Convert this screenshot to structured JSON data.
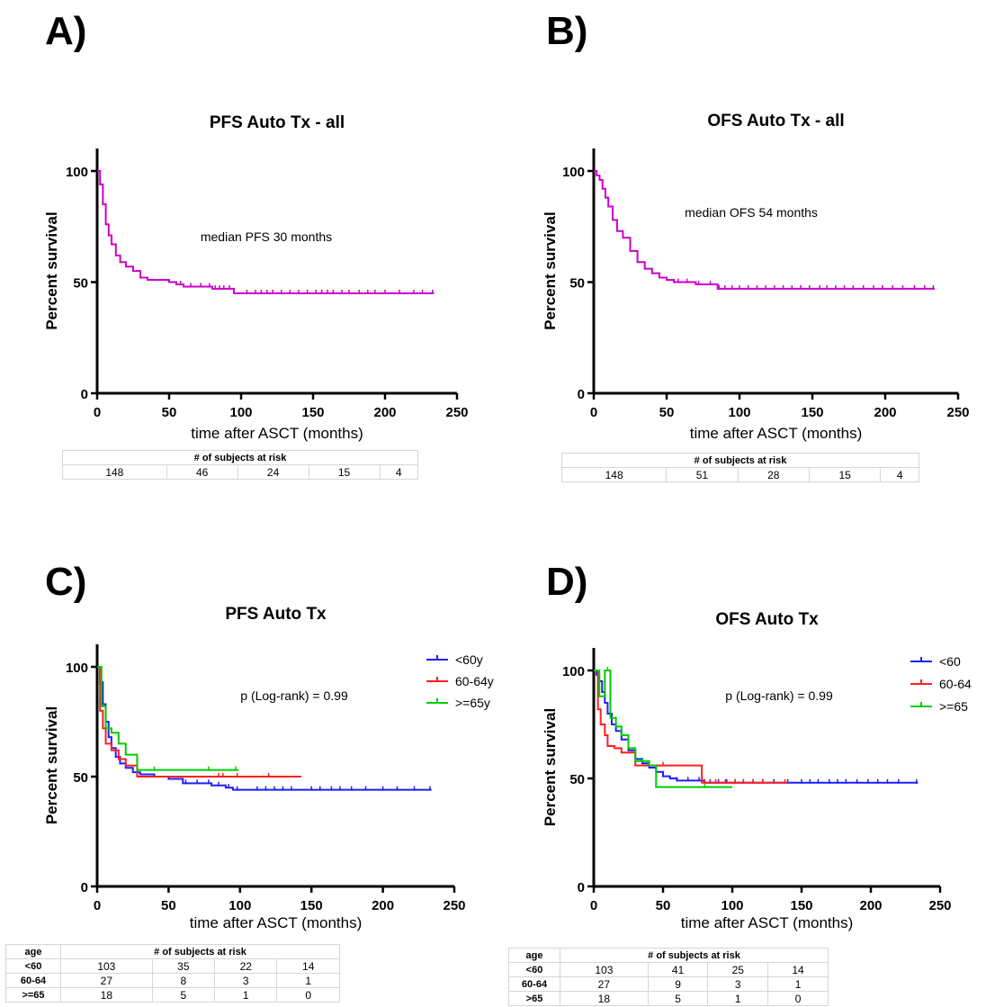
{
  "panels": {
    "a": "A)",
    "b": "B)",
    "c": "C)",
    "d": "D)"
  },
  "chart_data": [
    {
      "type": "line",
      "title": "PFS Auto Tx - all",
      "xlabel": "time after ASCT (months)",
      "ylabel": "Percent survival",
      "xlim": [
        0,
        250
      ],
      "ylim": [
        0,
        100
      ],
      "xticks": [
        0,
        50,
        100,
        150,
        200,
        250
      ],
      "yticks": [
        0,
        50,
        100
      ],
      "annotation": "median PFS 30 months",
      "series": [
        {
          "color": "#cc00cc",
          "x": [
            0,
            2,
            4,
            6,
            8,
            10,
            13,
            16,
            20,
            25,
            30,
            35,
            40,
            45,
            50,
            55,
            60,
            70,
            80,
            90,
            95,
            100,
            110,
            130,
            150,
            170,
            190,
            210,
            234
          ],
          "y": [
            100,
            94,
            85,
            76,
            71,
            67,
            62,
            59,
            57,
            55,
            52,
            51,
            51,
            51,
            50,
            49,
            48,
            48,
            47,
            47,
            45,
            45,
            45,
            45,
            45,
            45,
            45,
            45,
            45
          ],
          "censors": [
            58,
            65,
            72,
            78,
            82,
            85,
            88,
            92,
            104,
            110,
            114,
            118,
            122,
            128,
            134,
            140,
            146,
            152,
            156,
            160,
            164,
            170,
            175,
            182,
            188,
            193,
            200,
            210,
            220,
            226,
            233
          ]
        }
      ],
      "risk_table": {
        "header": "# of subjects at risk",
        "values": [
          "148",
          "46",
          "24",
          "15",
          "4"
        ]
      }
    },
    {
      "type": "line",
      "title": "OFS Auto Tx - all",
      "xlabel": "time after ASCT (months)",
      "ylabel": "Percent survival",
      "xlim": [
        0,
        250
      ],
      "ylim": [
        0,
        100
      ],
      "xticks": [
        0,
        50,
        100,
        150,
        200,
        250
      ],
      "yticks": [
        0,
        50,
        100
      ],
      "annotation": "median OFS 54 months",
      "series": [
        {
          "color": "#cc00cc",
          "x": [
            0,
            2,
            4,
            6,
            8,
            10,
            13,
            16,
            20,
            25,
            30,
            35,
            40,
            45,
            50,
            55,
            60,
            70,
            80,
            85,
            100,
            130,
            160,
            190,
            220,
            234
          ],
          "y": [
            100,
            98,
            96,
            92,
            88,
            84,
            78,
            73,
            70,
            64,
            59,
            56,
            54,
            52,
            51,
            50,
            50,
            49,
            49,
            47,
            47,
            47,
            47,
            47,
            47,
            47
          ],
          "censors": [
            58,
            64,
            72,
            80,
            86,
            90,
            95,
            100,
            106,
            112,
            118,
            124,
            130,
            136,
            142,
            148,
            155,
            160,
            166,
            172,
            178,
            185,
            192,
            198,
            205,
            212,
            220,
            227,
            233
          ]
        }
      ],
      "risk_table": {
        "header": "# of subjects at risk",
        "values": [
          "148",
          "51",
          "28",
          "15",
          "4"
        ]
      }
    },
    {
      "type": "line",
      "title": "PFS Auto Tx",
      "xlabel": "time after ASCT (months)",
      "ylabel": "Percent survival",
      "xlim": [
        0,
        250
      ],
      "ylim": [
        0,
        100
      ],
      "xticks": [
        0,
        50,
        100,
        150,
        200,
        250
      ],
      "yticks": [
        0,
        50,
        100
      ],
      "annotation": "p (Log-rank) = 0.99",
      "legend": "top-right",
      "series": [
        {
          "name": "<60y",
          "color": "#1f1fff",
          "x": [
            0,
            2,
            4,
            6,
            8,
            10,
            13,
            16,
            20,
            25,
            30,
            40,
            50,
            60,
            70,
            80,
            90,
            95,
            100,
            120,
            150,
            180,
            210,
            234
          ],
          "y": [
            100,
            93,
            83,
            75,
            68,
            63,
            59,
            56,
            54,
            52,
            51,
            50,
            49,
            47,
            47,
            46,
            45,
            44,
            44,
            44,
            44,
            44,
            44,
            44
          ],
          "censors": [
            62,
            70,
            78,
            85,
            92,
            98,
            112,
            118,
            124,
            130,
            136,
            150,
            156,
            164,
            170,
            178,
            188,
            200,
            210,
            222,
            233
          ]
        },
        {
          "name": "60-64y",
          "color": "#ff1f1f",
          "x": [
            0,
            2,
            4,
            6,
            10,
            15,
            20,
            28,
            40,
            60,
            80,
            100,
            143
          ],
          "y": [
            100,
            80,
            72,
            65,
            62,
            58,
            55,
            50,
            50,
            50,
            50,
            50,
            50
          ],
          "censors": [
            85,
            88,
            98,
            120
          ]
        },
        {
          "name": ">=65y",
          "color": "#00cc00",
          "x": [
            0,
            3,
            6,
            10,
            15,
            20,
            28,
            40,
            60,
            80,
            99
          ],
          "y": [
            100,
            82,
            72,
            70,
            65,
            60,
            53,
            53,
            53,
            53,
            53
          ],
          "censors": [
            40,
            78,
            97
          ]
        }
      ],
      "risk_table": {
        "age_header": "age",
        "header": "# of subjects at risk",
        "rows": [
          {
            "group": "<60",
            "values": [
              "103",
              "35",
              "22",
              "14"
            ]
          },
          {
            "group": "60-64",
            "values": [
              "27",
              "8",
              "3",
              "1"
            ]
          },
          {
            "group": ">=65",
            "values": [
              "18",
              "5",
              "1",
              "0"
            ]
          }
        ]
      }
    },
    {
      "type": "line",
      "title": "OFS Auto Tx",
      "xlabel": "time after ASCT (months)",
      "ylabel": "Percent survival",
      "xlim": [
        0,
        250
      ],
      "ylim": [
        0,
        100
      ],
      "xticks": [
        0,
        50,
        100,
        150,
        200,
        250
      ],
      "yticks": [
        0,
        50,
        100
      ],
      "annotation": "p (Log-rank) = 0.99",
      "legend": "top-right",
      "series": [
        {
          "name": "<60",
          "color": "#1f1fff",
          "x": [
            0,
            2,
            4,
            6,
            8,
            10,
            13,
            16,
            20,
            25,
            30,
            35,
            40,
            45,
            50,
            55,
            60,
            70,
            80,
            100,
            130,
            170,
            200,
            234
          ],
          "y": [
            100,
            98,
            95,
            90,
            85,
            80,
            75,
            72,
            68,
            63,
            59,
            57,
            55,
            53,
            51,
            50,
            49,
            49,
            48,
            48,
            48,
            48,
            48,
            48
          ],
          "censors": [
            60,
            68,
            76,
            84,
            90,
            96,
            102,
            108,
            115,
            122,
            130,
            140,
            150,
            156,
            162,
            170,
            176,
            182,
            190,
            198,
            205,
            212,
            220,
            233
          ]
        },
        {
          "name": "60-64",
          "color": "#ff1f1f",
          "x": [
            0,
            3,
            5,
            8,
            10,
            15,
            20,
            30,
            45,
            60,
            75,
            78,
            100,
            140
          ],
          "y": [
            100,
            82,
            75,
            70,
            65,
            64,
            62,
            56,
            56,
            56,
            56,
            48,
            48,
            48
          ],
          "censors": [
            50,
            80,
            88,
            95,
            102,
            108,
            115,
            122,
            138
          ]
        },
        {
          "name": ">=65",
          "color": "#00cc00",
          "x": [
            0,
            4,
            8,
            12,
            16,
            20,
            25,
            30,
            40,
            45,
            60,
            80,
            100
          ],
          "y": [
            100,
            88,
            100,
            78,
            74,
            70,
            64,
            58,
            56,
            46,
            46,
            46,
            46
          ],
          "censors": [
            10,
            25,
            35,
            80
          ]
        }
      ],
      "risk_table": {
        "age_header": "age",
        "header": "# of subjects at risk",
        "rows": [
          {
            "group": "<60",
            "values": [
              "103",
              "41",
              "25",
              "14"
            ]
          },
          {
            "group": "60-64",
            "values": [
              "27",
              "9",
              "3",
              "1"
            ]
          },
          {
            "group": ">65",
            "values": [
              "18",
              "5",
              "1",
              "0"
            ]
          }
        ]
      }
    }
  ]
}
